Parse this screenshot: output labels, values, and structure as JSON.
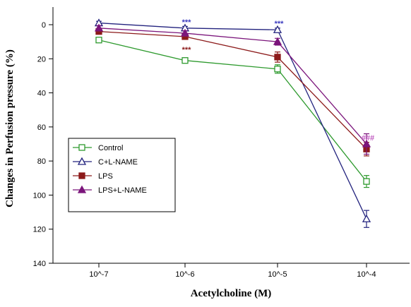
{
  "chart_data": {
    "type": "line",
    "title": "",
    "xlabel": "Acetylcholine (M)",
    "ylabel": "Changes in Perfusion pressure (%)",
    "y_inverted": true,
    "ylim": [
      0,
      140
    ],
    "yticks": [
      0,
      20,
      40,
      60,
      80,
      100,
      120,
      140
    ],
    "categories": [
      "10^-7",
      "10^-6",
      "10^-5",
      "10^-4"
    ],
    "grid": false,
    "legend_position": "bottom-left",
    "series": [
      {
        "name": "Control",
        "color": "#2e9a2e",
        "marker": "square-open",
        "values": [
          9,
          21,
          26,
          92
        ],
        "errors": [
          1.5,
          1.5,
          2.5,
          3.5
        ]
      },
      {
        "name": "C+L-NAME",
        "color": "#23237e",
        "marker": "triangle-open",
        "values": [
          -1,
          2,
          3,
          114
        ],
        "errors": [
          1,
          1,
          1,
          5
        ]
      },
      {
        "name": "LPS",
        "color": "#8c1a1a",
        "marker": "square-filled",
        "values": [
          4,
          7,
          19,
          73
        ],
        "errors": [
          1.5,
          1.5,
          3,
          4
        ]
      },
      {
        "name": "LPS+L-NAME",
        "color": "#7b157b",
        "marker": "triangle-filled",
        "values": [
          2,
          5,
          10,
          70
        ],
        "errors": [
          1.5,
          1.5,
          2,
          6
        ]
      }
    ],
    "annotations": [
      {
        "text": "***",
        "category": "10^-6",
        "value": 2,
        "color": "#3b3bbf",
        "placement": "above"
      },
      {
        "text": "***",
        "category": "10^-6",
        "value": 7,
        "color": "#8c1a1a",
        "placement": "below"
      },
      {
        "text": "***",
        "category": "10^-5",
        "value": 3,
        "color": "#3b3bbf",
        "placement": "above"
      },
      {
        "text": "###",
        "category": "10^-4",
        "value": 70,
        "color": "#c05ac0",
        "placement": "above"
      }
    ]
  }
}
